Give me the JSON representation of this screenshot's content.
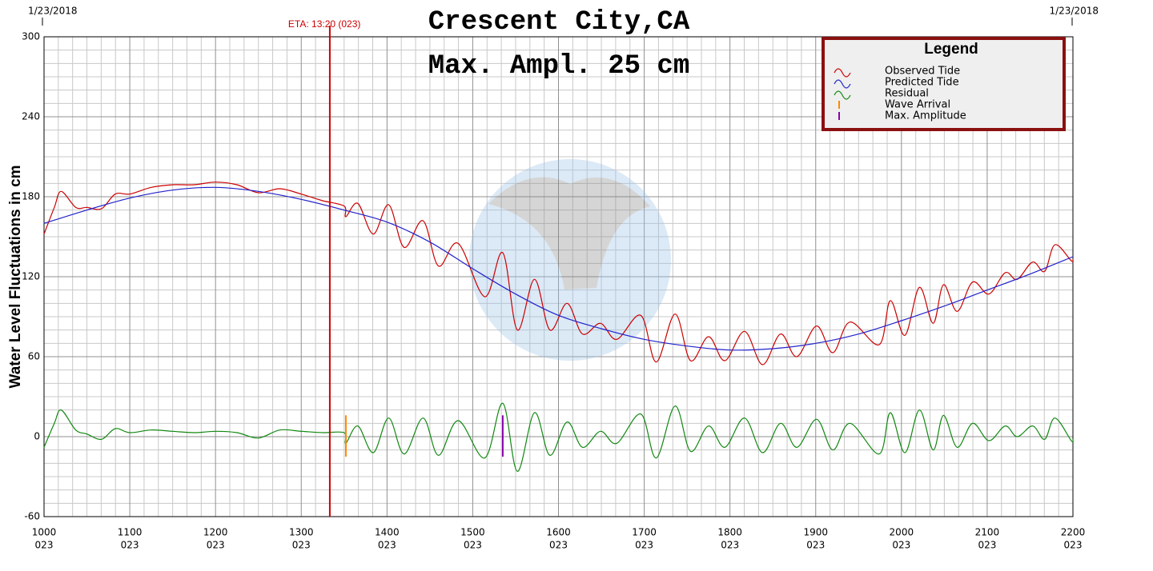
{
  "chart_data": {
    "type": "line",
    "title": "Crescent City,CA",
    "subtitle": "Max. Ampl. 25 cm",
    "corner_labels": [
      "1/23/2018",
      "1/23/2018"
    ],
    "ylabel": "Water Level Fluctuations in cm",
    "xlim": [
      10,
      22
    ],
    "ylim": [
      -60,
      300
    ],
    "yticks": [
      300,
      240,
      180,
      120,
      60,
      0,
      -60
    ],
    "xticks": [
      {
        "value": 10,
        "label": "1000"
      },
      {
        "value": 11,
        "label": "1100"
      },
      {
        "value": 12,
        "label": "1200"
      },
      {
        "value": 13,
        "label": "1300"
      },
      {
        "value": 14,
        "label": "1400"
      },
      {
        "value": 15,
        "label": "1500"
      },
      {
        "value": 16,
        "label": "1600"
      },
      {
        "value": 17,
        "label": "1700"
      },
      {
        "value": 18,
        "label": "1800"
      },
      {
        "value": 19,
        "label": "1900"
      },
      {
        "value": 20,
        "label": "2000"
      },
      {
        "value": 21,
        "label": "2100"
      },
      {
        "value": 22,
        "label": "2200"
      }
    ],
    "xtick_days": [
      "023",
      "023",
      "023",
      "023",
      "023",
      "023",
      "023",
      "023",
      "023",
      "023",
      "023",
      "023",
      "023"
    ],
    "grid": true,
    "legend_title": "Legend",
    "legend": "upper right",
    "eta": {
      "label": "ETA: 13:20 (023)",
      "x": 13.333,
      "color": "#cc0000"
    },
    "series": [
      {
        "name": "Observed Tide",
        "color": "#cc0000",
        "x": [
          10,
          10.12,
          10.2,
          10.37,
          10.5,
          10.67,
          10.83,
          11,
          11.25,
          11.5,
          11.75,
          12,
          12.25,
          12.5,
          12.75,
          13,
          13.25,
          13.5,
          13.52,
          13.66,
          13.84,
          14.02,
          14.2,
          14.42,
          14.6,
          14.83,
          15.14,
          15.35,
          15.52,
          15.72,
          15.9,
          16.1,
          16.28,
          16.49,
          16.68,
          16.96,
          17.14,
          17.36,
          17.54,
          17.75,
          17.94,
          18.17,
          18.38,
          18.59,
          18.78,
          19.01,
          19.2,
          19.4,
          19.74,
          19.87,
          20.04,
          20.21,
          20.37,
          20.49,
          20.65,
          20.83,
          21.02,
          21.21,
          21.35,
          21.53,
          21.67,
          21.79,
          21.98,
          22
        ],
        "values": [
          152,
          172,
          184,
          172,
          172,
          171,
          182,
          182,
          187,
          189,
          189,
          191,
          189,
          183,
          186,
          182,
          177,
          173,
          165,
          175,
          152,
          174,
          142,
          162,
          128,
          145,
          105,
          138,
          80,
          118,
          80,
          100,
          77,
          85,
          73,
          91,
          56,
          92,
          57,
          75,
          57,
          79,
          54,
          77,
          60,
          83,
          63,
          86,
          69,
          102,
          76,
          112,
          85,
          114,
          94,
          116,
          107,
          123,
          118,
          131,
          124,
          144,
          132,
          133
        ]
      },
      {
        "name": "Predicted Tide",
        "color": "#2222cc",
        "x": [
          10,
          10.5,
          11,
          11.5,
          12,
          12.5,
          13,
          13.5,
          14,
          14.5,
          15,
          15.5,
          16,
          16.5,
          17,
          17.5,
          18,
          18.5,
          19,
          19.5,
          20,
          20.5,
          21,
          21.5,
          22
        ],
        "values": [
          160,
          170,
          179,
          185,
          187,
          184,
          178,
          170,
          161,
          146,
          126,
          107,
          91,
          81,
          73,
          68,
          65,
          66,
          70,
          77,
          87,
          98,
          110,
          122,
          135
        ]
      },
      {
        "name": "Residual",
        "color": "#118811",
        "x": [
          10,
          10.12,
          10.2,
          10.37,
          10.5,
          10.67,
          10.83,
          11,
          11.25,
          11.5,
          11.75,
          12,
          12.25,
          12.5,
          12.75,
          13,
          13.25,
          13.5,
          13.52,
          13.66,
          13.84,
          14.02,
          14.2,
          14.42,
          14.6,
          14.83,
          15.14,
          15.35,
          15.52,
          15.72,
          15.9,
          16.1,
          16.28,
          16.49,
          16.68,
          16.96,
          17.14,
          17.36,
          17.54,
          17.75,
          17.94,
          18.17,
          18.38,
          18.59,
          18.78,
          19.01,
          19.2,
          19.4,
          19.74,
          19.87,
          20.04,
          20.21,
          20.37,
          20.49,
          20.65,
          20.83,
          21.02,
          21.21,
          21.35,
          21.53,
          21.67,
          21.79,
          21.98,
          22
        ],
        "values": [
          -8,
          10,
          20,
          5,
          2,
          -2,
          6,
          3,
          5,
          4,
          3,
          4,
          3,
          -1,
          5,
          4,
          3,
          3,
          -5,
          8,
          -12,
          14,
          -13,
          14,
          -14,
          12,
          -16,
          25,
          -26,
          18,
          -14,
          11,
          -8,
          4,
          -5,
          17,
          -16,
          23,
          -11,
          8,
          -8,
          14,
          -12,
          10,
          -8,
          13,
          -10,
          10,
          -13,
          18,
          -12,
          20,
          -10,
          16,
          -8,
          10,
          -3,
          8,
          0,
          8,
          -2,
          14,
          -3,
          -2
        ]
      }
    ],
    "markers": [
      {
        "name": "Wave Arrival",
        "color": "#ff8800",
        "x": 13.52,
        "span": [
          -15,
          16
        ]
      },
      {
        "name": "Max. Amplitude",
        "color": "#8800aa",
        "x": 15.35,
        "span": [
          -15,
          16
        ]
      }
    ]
  }
}
